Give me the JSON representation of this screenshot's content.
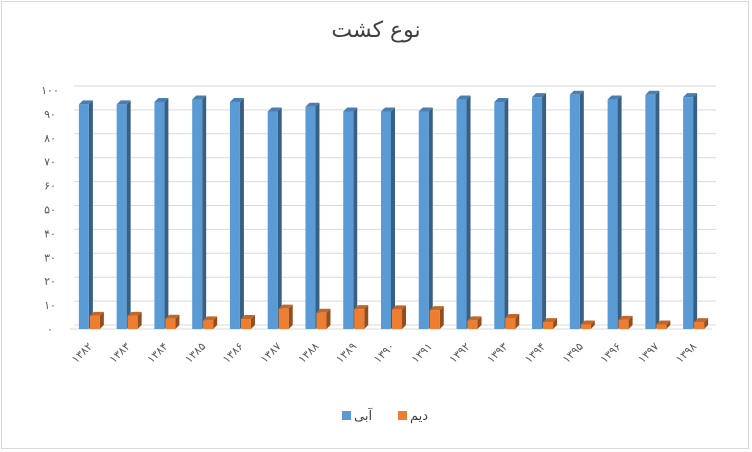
{
  "chart_data": {
    "type": "bar",
    "title": "نوع کشت",
    "categories": [
      "۱۳۸۲",
      "۱۳۸۳",
      "۱۳۸۴",
      "۱۳۸۵",
      "۱۳۸۶",
      "۱۳۸۷",
      "۱۳۸۸",
      "۱۳۸۹",
      "۱۳۹۰",
      "۱۳۹۱",
      "۱۳۹۲",
      "۱۳۹۳",
      "۱۳۹۴",
      "۱۳۹۵",
      "۱۳۹۶",
      "۱۳۹۷",
      "۱۳۹۸"
    ],
    "series": [
      {
        "name": "آبی",
        "color": "#5b9bd5",
        "values": [
          94,
          94,
          95,
          96,
          95,
          91,
          93,
          91,
          91,
          91,
          96,
          95,
          97,
          98,
          96,
          98,
          97
        ]
      },
      {
        "name": "دیم",
        "color": "#ed7d31",
        "values": [
          5.5,
          5.5,
          4.3,
          3.6,
          4.2,
          8.5,
          6.8,
          8.3,
          8.2,
          7.9,
          3.6,
          4.6,
          2.9,
          1.9,
          3.8,
          1.9,
          2.9
        ]
      }
    ],
    "yticks": [
      "۰",
      "۱۰",
      "۲۰",
      "۳۰",
      "۴۰",
      "۵۰",
      "۶۰",
      "۷۰",
      "۸۰",
      "۹۰",
      "۱۰۰"
    ],
    "ylim": [
      0,
      100
    ],
    "grid": true,
    "legend": "bottom"
  }
}
